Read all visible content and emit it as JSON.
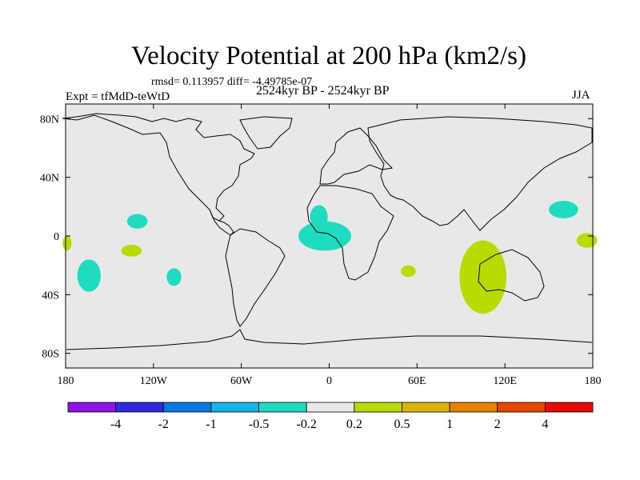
{
  "title": "Velocity Potential at 200 hPa (km2/s)",
  "stats": "rmsd= 0.113957 diff= -4.49785e-07",
  "period": "2524kyr BP - 2524kyr BP",
  "experiment": "Expt = tfMdD-teWtD",
  "season": "JJA",
  "map": {
    "projection": "cylindrical-equidistant",
    "lon_range": [
      -180,
      180
    ],
    "lat_range": [
      -90,
      90
    ],
    "background_color": "#e8e8e8",
    "coastline_color": "#000000",
    "x_ticks": [
      {
        "lon": -180,
        "label": "180"
      },
      {
        "lon": -120,
        "label": "120W"
      },
      {
        "lon": -60,
        "label": "60W"
      },
      {
        "lon": 0,
        "label": "0"
      },
      {
        "lon": 60,
        "label": "60E"
      },
      {
        "lon": 120,
        "label": "120E"
      },
      {
        "lon": 180,
        "label": "180"
      }
    ],
    "y_ticks": [
      {
        "lat": 80,
        "label": "80N"
      },
      {
        "lat": 40,
        "label": "40N"
      },
      {
        "lat": 0,
        "label": "0"
      },
      {
        "lat": -40,
        "label": "40S"
      },
      {
        "lat": -80,
        "label": "80S"
      }
    ]
  },
  "anomalies": [
    {
      "name": "tropical-atlantic-negative",
      "sign": "negative",
      "lon": -3,
      "lat": 0,
      "rlon": 18,
      "rlat": 10,
      "color": "#1edcc0"
    },
    {
      "name": "west-africa-negative-lobe",
      "sign": "negative",
      "lon": -7,
      "lat": 13,
      "rlon": 6,
      "rlat": 8,
      "color": "#1edcc0"
    },
    {
      "name": "east-pacific-negative",
      "sign": "negative",
      "lon": -131,
      "lat": 10,
      "rlon": 7,
      "rlat": 5,
      "color": "#1edcc0"
    },
    {
      "name": "south-pacific-negative-west",
      "sign": "negative",
      "lon": -164,
      "lat": -27,
      "rlon": 8,
      "rlat": 11,
      "color": "#1edcc0"
    },
    {
      "name": "south-pacific-negative-east",
      "sign": "negative",
      "lon": -106,
      "lat": -28,
      "rlon": 5,
      "rlat": 6,
      "color": "#1edcc0"
    },
    {
      "name": "west-pacific-negative",
      "sign": "negative",
      "lon": 160,
      "lat": 18,
      "rlon": 10,
      "rlat": 6,
      "color": "#1edcc0"
    },
    {
      "name": "south-pacific-positive",
      "sign": "positive",
      "lon": -135,
      "lat": -10,
      "rlon": 7,
      "rlat": 4,
      "color": "#b8dc00"
    },
    {
      "name": "dateline-positive-west",
      "sign": "positive",
      "lon": -179,
      "lat": -5,
      "rlon": 3,
      "rlat": 5,
      "color": "#b8dc00"
    },
    {
      "name": "dateline-positive-east",
      "sign": "positive",
      "lon": 176,
      "lat": -3,
      "rlon": 7,
      "rlat": 5,
      "color": "#b8dc00"
    },
    {
      "name": "indian-ocean-positive",
      "sign": "positive",
      "lon": 105,
      "lat": -28,
      "rlon": 16,
      "rlat": 25,
      "color": "#b8dc00"
    },
    {
      "name": "madagascar-positive",
      "sign": "positive",
      "lon": 54,
      "lat": -24,
      "rlon": 5,
      "rlat": 4,
      "color": "#b8dc00"
    }
  ],
  "colorbar": {
    "colors": [
      "#8c14e6",
      "#3228dc",
      "#0a78e1",
      "#14b4e6",
      "#1edcc0",
      "#e8e8e8",
      "#b8dc00",
      "#dcb400",
      "#e68200",
      "#e64600",
      "#e60a0a"
    ],
    "labels": [
      "-4",
      "-2",
      "-1",
      "-0.5",
      "-0.2",
      "0.2",
      "0.5",
      "1",
      "2",
      "4"
    ]
  }
}
